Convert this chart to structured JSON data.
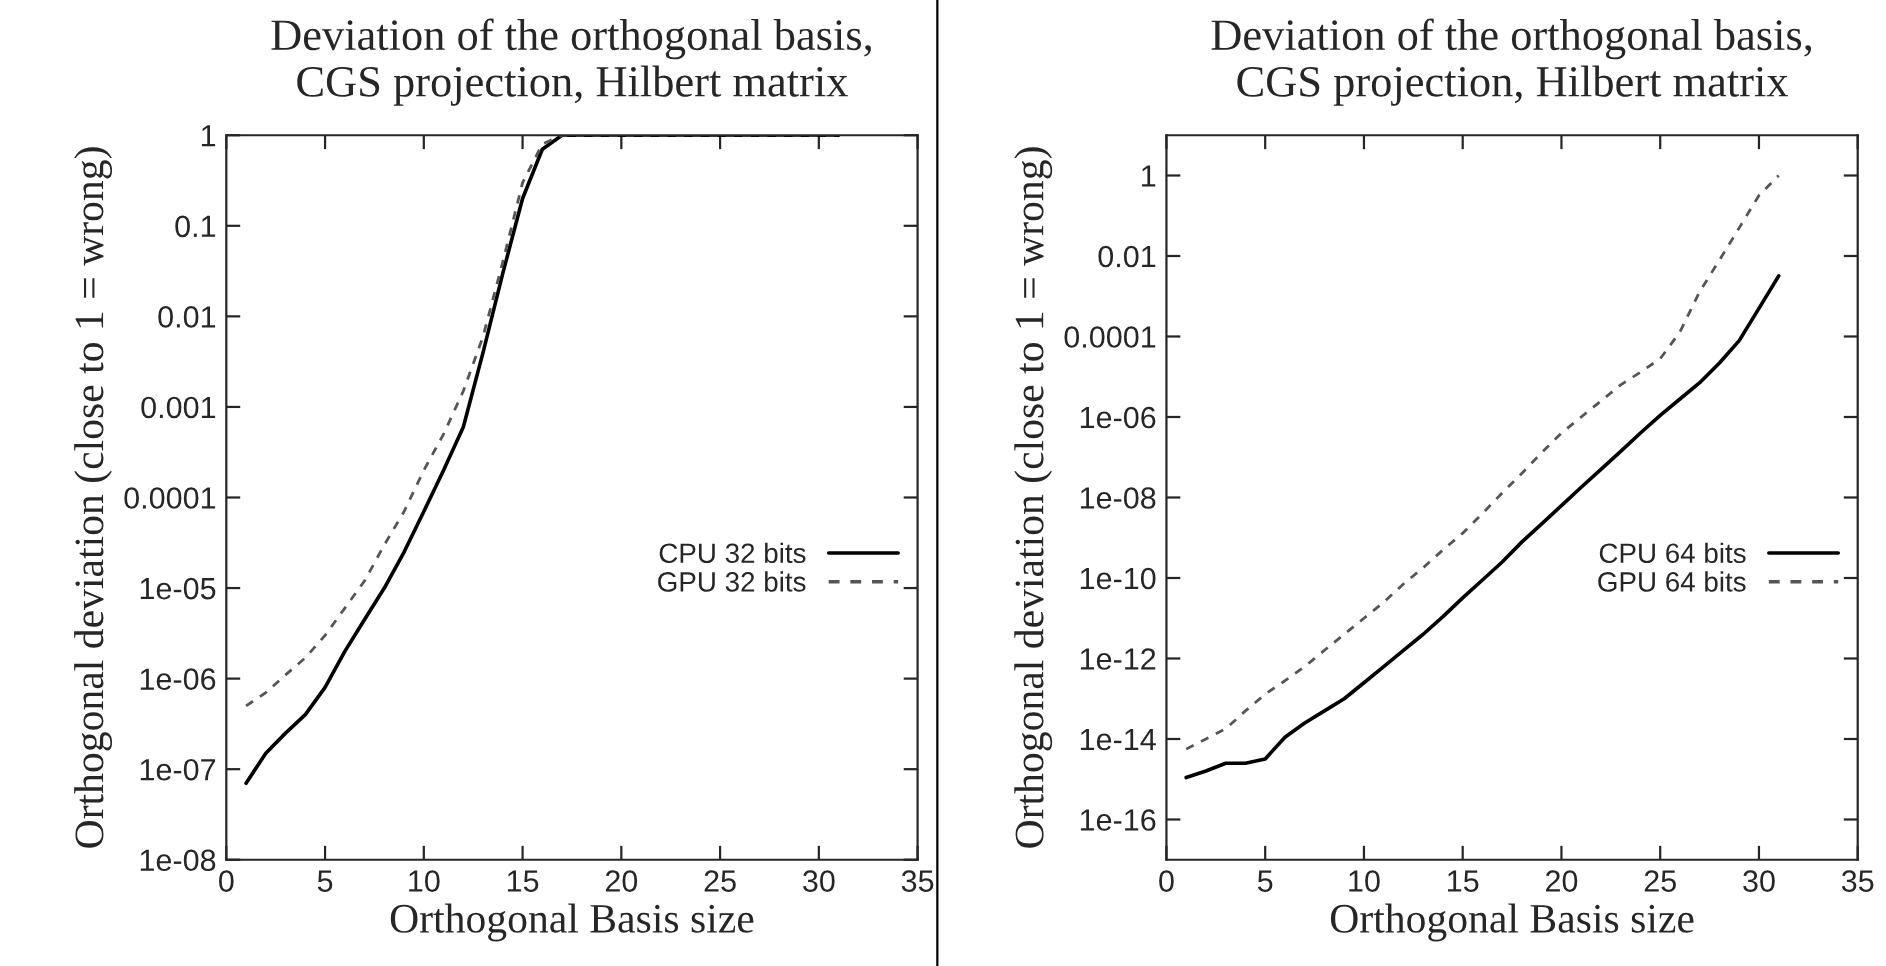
{
  "chart_data": [
    {
      "type": "line",
      "title": "Deviation of the orthogonal basis,\nCGS projection, Hilbert matrix",
      "xlabel": "Orthogonal Basis size",
      "ylabel": "Orthogonal deviation (close to 1 = wrong)",
      "log": "y",
      "grid": false,
      "legend": "right",
      "xlim": [
        0,
        35
      ],
      "xticks": [
        0,
        5,
        10,
        15,
        20,
        25,
        30,
        35
      ],
      "ylim": [
        1e-08,
        1
      ],
      "yticks": [
        {
          "value": 1e-08,
          "label": "1e-08"
        },
        {
          "value": 1e-07,
          "label": "1e-07"
        },
        {
          "value": 1e-06,
          "label": "1e-06"
        },
        {
          "value": 1e-05,
          "label": "1e-05"
        },
        {
          "value": 0.0001,
          "label": "0.0001"
        },
        {
          "value": 0.001,
          "label": "0.001"
        },
        {
          "value": 0.01,
          "label": "0.01"
        },
        {
          "value": 0.1,
          "label": "0.1"
        },
        {
          "value": 1,
          "label": "1"
        }
      ],
      "x": [
        1,
        2,
        3,
        4,
        5,
        6,
        7,
        8,
        9,
        10,
        11,
        12,
        13,
        14,
        15,
        16,
        17,
        18,
        19,
        20,
        21,
        22,
        23,
        24,
        25,
        26,
        27,
        28,
        29,
        30,
        31
      ],
      "series": [
        {
          "name": "CPU 32 bits",
          "color": "#000000",
          "line_style": "solid",
          "values": [
            7e-08,
            1.5e-07,
            2.5e-07,
            4e-07,
            8e-07,
            2e-06,
            4.5e-06,
            1e-05,
            2.5e-05,
            7e-05,
            0.0002,
            0.0006,
            0.004,
            0.03,
            0.2,
            0.7,
            1,
            1,
            1,
            1,
            1,
            1,
            1,
            1,
            1,
            1,
            1,
            1,
            1,
            1,
            1
          ]
        },
        {
          "name": "GPU 32 bits",
          "color": "#555555",
          "line_style": "dashed",
          "values": [
            5e-07,
            7e-07,
            1.1e-06,
            1.7e-06,
            3e-06,
            6e-06,
            1.2e-05,
            3e-05,
            7e-05,
            0.0002,
            0.0005,
            0.0015,
            0.006,
            0.04,
            0.3,
            0.8,
            1,
            1,
            1,
            1,
            1,
            1,
            1,
            1,
            1,
            1,
            1,
            1,
            1,
            1,
            1
          ]
        }
      ]
    },
    {
      "type": "line",
      "title": "Deviation of the orthogonal basis,\nCGS projection, Hilbert matrix",
      "xlabel": "Orthogonal Basis size",
      "ylabel": "Orthogonal deviation (close to 1 = wrong)",
      "log": "y",
      "grid": false,
      "legend": "right",
      "xlim": [
        0,
        35
      ],
      "xticks": [
        0,
        5,
        10,
        15,
        20,
        25,
        30,
        35
      ],
      "ylim": [
        1e-17,
        10
      ],
      "yticks": [
        {
          "value": 1e-16,
          "label": "1e-16"
        },
        {
          "value": 1e-14,
          "label": "1e-14"
        },
        {
          "value": 1e-12,
          "label": "1e-12"
        },
        {
          "value": 1e-10,
          "label": "1e-10"
        },
        {
          "value": 1e-08,
          "label": "1e-08"
        },
        {
          "value": 1e-06,
          "label": "1e-06"
        },
        {
          "value": 0.0001,
          "label": "0.0001"
        },
        {
          "value": 0.01,
          "label": "0.01"
        },
        {
          "value": 1,
          "label": "1"
        }
      ],
      "x": [
        1,
        2,
        3,
        4,
        5,
        6,
        7,
        8,
        9,
        10,
        11,
        12,
        13,
        14,
        15,
        16,
        17,
        18,
        19,
        20,
        21,
        22,
        23,
        24,
        25,
        26,
        27,
        28,
        29,
        30,
        31
      ],
      "series": [
        {
          "name": "CPU 64 bits",
          "color": "#000000",
          "line_style": "solid",
          "values": [
            1.1e-15,
            1.6e-15,
            2.5e-15,
            2.5e-15,
            3.2e-15,
            1.1e-14,
            2.5e-14,
            5e-14,
            1e-13,
            2.5e-13,
            6.3e-13,
            1.6e-12,
            4e-12,
            1.1e-11,
            3.2e-11,
            8.9e-11,
            2.5e-10,
            7.9e-10,
            2.2e-09,
            6.3e-09,
            1.8e-08,
            5e-08,
            1.4e-07,
            4e-07,
            1.1e-06,
            2.8e-06,
            7.1e-06,
            2.2e-05,
            7.9e-05,
            0.0005,
            0.0032
          ]
        },
        {
          "name": "GPU 64 bits",
          "color": "#555555",
          "line_style": "dashed",
          "values": [
            5.6e-15,
            1e-14,
            1.8e-14,
            5e-14,
            1.3e-13,
            2.8e-13,
            6.3e-13,
            1.6e-12,
            4e-12,
            1e-11,
            2.5e-11,
            7.1e-11,
            1.8e-10,
            5e-10,
            1.3e-09,
            4e-09,
            1.3e-08,
            4e-08,
            1.3e-07,
            4e-07,
            1e-06,
            2.5e-06,
            6.3e-06,
            1.3e-05,
            2.8e-05,
            0.00013,
            0.0013,
            0.0079,
            0.05,
            0.32,
            1
          ]
        }
      ]
    }
  ]
}
